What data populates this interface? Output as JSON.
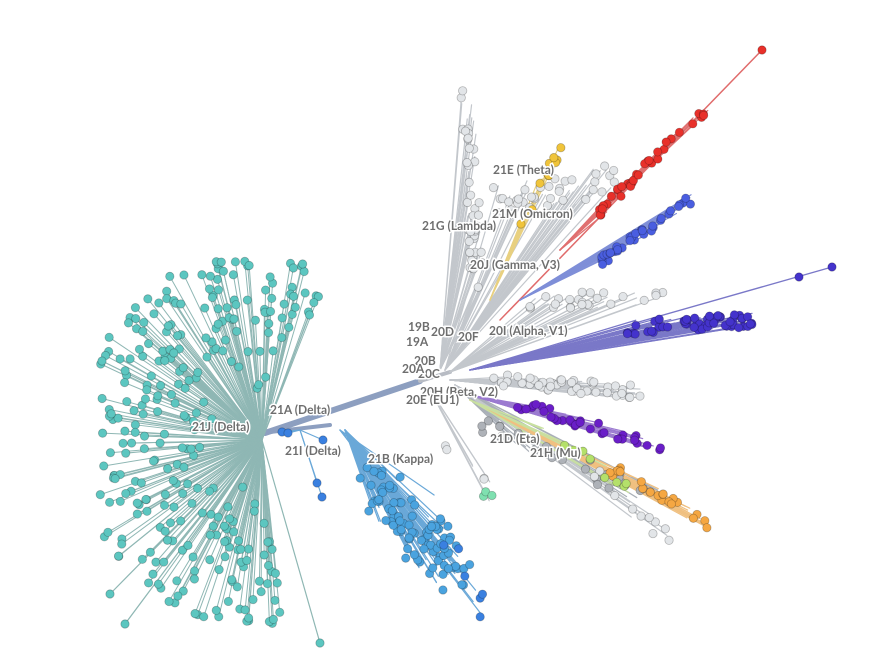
{
  "clade_labels": [
    "21E (Theta)",
    "21M (Omicron)",
    "21G (Lambda)",
    "20J (Gamma, V3)",
    "19B",
    "20D",
    "19A",
    "20F",
    "20I (Alpha, V1)",
    "20B",
    "20C",
    "20A",
    "20H (Beta, V2)",
    "20E (EU1)",
    "21D (Eta)",
    "21H (Mu)",
    "21A (Delta)",
    "21J (Delta)",
    "21I (Delta)",
    "21B (Kappa)"
  ]
}
